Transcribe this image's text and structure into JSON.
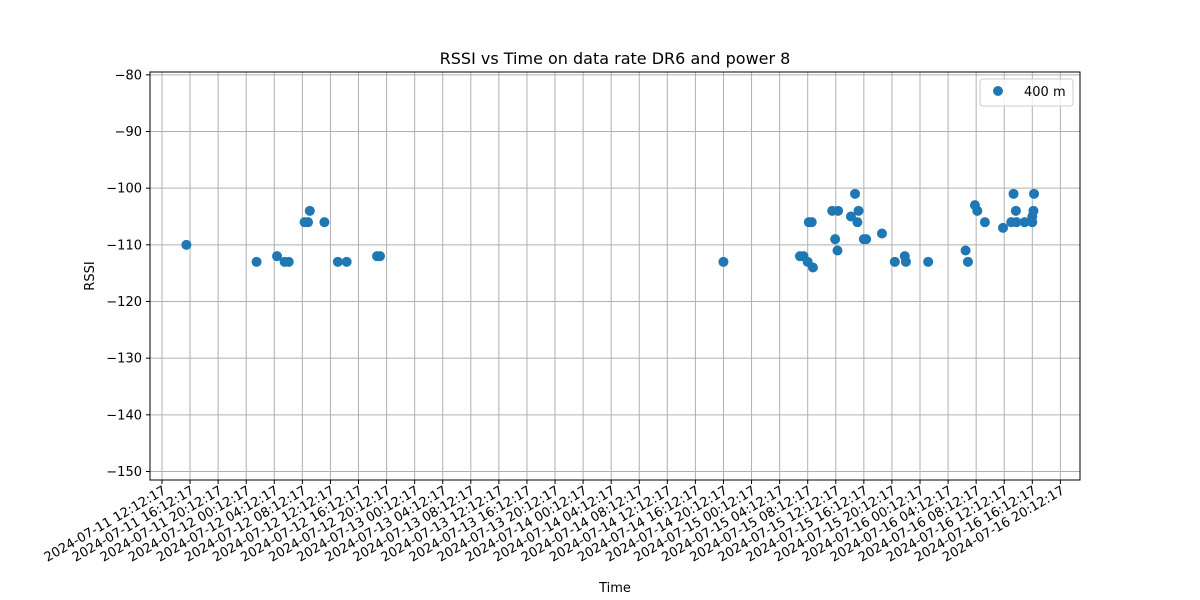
{
  "chart_data": {
    "type": "scatter",
    "title": "RSSI vs Time on data rate DR6 and power 8",
    "xlabel": "Time",
    "ylabel": "RSSI",
    "xlim": [
      "2024-07-11 10:30",
      "2024-07-16 23:00"
    ],
    "ylim": [
      -151.5,
      -79.5
    ],
    "x_ticks": [
      "2024-07-11 12:12:17",
      "2024-07-11 16:12:17",
      "2024-07-11 20:12:17",
      "2024-07-12 00:12:17",
      "2024-07-12 04:12:17",
      "2024-07-12 08:12:17",
      "2024-07-12 12:12:17",
      "2024-07-12 16:12:17",
      "2024-07-12 20:12:17",
      "2024-07-13 00:12:17",
      "2024-07-13 04:12:17",
      "2024-07-13 08:12:17",
      "2024-07-13 12:12:17",
      "2024-07-13 16:12:17",
      "2024-07-13 20:12:17",
      "2024-07-14 00:12:17",
      "2024-07-14 04:12:17",
      "2024-07-14 08:12:17",
      "2024-07-14 12:12:17",
      "2024-07-14 16:12:17",
      "2024-07-14 20:12:17",
      "2024-07-15 00:12:17",
      "2024-07-15 04:12:17",
      "2024-07-15 08:12:17",
      "2024-07-15 12:12:17",
      "2024-07-15 16:12:17",
      "2024-07-15 20:12:17",
      "2024-07-16 00:12:17",
      "2024-07-16 04:12:17",
      "2024-07-16 08:12:17",
      "2024-07-16 12:12:17",
      "2024-07-16 16:12:17",
      "2024-07-16 20:12:17"
    ],
    "y_ticks": [
      -150,
      -140,
      -130,
      -120,
      -110,
      -100,
      -90,
      -80
    ],
    "y_tick_labels": [
      "−150",
      "−140",
      "−130",
      "−120",
      "−110",
      "−100",
      "−90",
      "−80"
    ],
    "grid": true,
    "legend_position": "top-right",
    "colors": {
      "series": "#1f77b4",
      "grid": "#b0b0b0",
      "legend_border": "#cccccc"
    },
    "series": [
      {
        "name": "400 m",
        "points": [
          [
            "2024-07-11 15:41",
            -110
          ],
          [
            "2024-07-12 01:41",
            -113
          ],
          [
            "2024-07-12 04:36",
            -112
          ],
          [
            "2024-07-12 05:41",
            -113
          ],
          [
            "2024-07-12 06:16",
            -113
          ],
          [
            "2024-07-12 08:31",
            -106
          ],
          [
            "2024-07-12 09:01",
            -106
          ],
          [
            "2024-07-12 09:16",
            -104
          ],
          [
            "2024-07-12 11:21",
            -106
          ],
          [
            "2024-07-12 13:16",
            -113
          ],
          [
            "2024-07-12 14:31",
            -113
          ],
          [
            "2024-07-12 18:51",
            -112
          ],
          [
            "2024-07-12 19:16",
            -112
          ],
          [
            "2024-07-14 20:12",
            -113
          ],
          [
            "2024-07-15 07:06",
            -112
          ],
          [
            "2024-07-15 07:36",
            -112
          ],
          [
            "2024-07-15 08:12",
            -113
          ],
          [
            "2024-07-15 08:22",
            -106
          ],
          [
            "2024-07-15 08:47",
            -106
          ],
          [
            "2024-07-15 08:57",
            -114
          ],
          [
            "2024-07-15 11:42",
            -104
          ],
          [
            "2024-07-15 12:07",
            -109
          ],
          [
            "2024-07-15 12:27",
            -111
          ],
          [
            "2024-07-15 12:32",
            -104
          ],
          [
            "2024-07-15 14:22",
            -105
          ],
          [
            "2024-07-15 14:57",
            -101
          ],
          [
            "2024-07-15 15:17",
            -106
          ],
          [
            "2024-07-15 15:27",
            -104
          ],
          [
            "2024-07-15 16:12",
            -109
          ],
          [
            "2024-07-15 16:32",
            -109
          ],
          [
            "2024-07-15 18:47",
            -108
          ],
          [
            "2024-07-15 20:37",
            -113
          ],
          [
            "2024-07-15 22:02",
            -112
          ],
          [
            "2024-07-15 22:12",
            -113
          ],
          [
            "2024-07-16 01:22",
            -113
          ],
          [
            "2024-07-16 06:42",
            -111
          ],
          [
            "2024-07-16 07:02",
            -113
          ],
          [
            "2024-07-16 08:02",
            -103
          ],
          [
            "2024-07-16 08:22",
            -104
          ],
          [
            "2024-07-16 09:27",
            -106
          ],
          [
            "2024-07-16 12:02",
            -107
          ],
          [
            "2024-07-16 13:12",
            -106
          ],
          [
            "2024-07-16 13:32",
            -101
          ],
          [
            "2024-07-16 13:52",
            -104
          ],
          [
            "2024-07-16 13:57",
            -106
          ],
          [
            "2024-07-16 15:07",
            -106
          ],
          [
            "2024-07-16 16:12",
            -106
          ],
          [
            "2024-07-16 16:12",
            -105
          ],
          [
            "2024-07-16 16:22",
            -104
          ],
          [
            "2024-07-16 16:27",
            -101
          ]
        ]
      }
    ]
  }
}
